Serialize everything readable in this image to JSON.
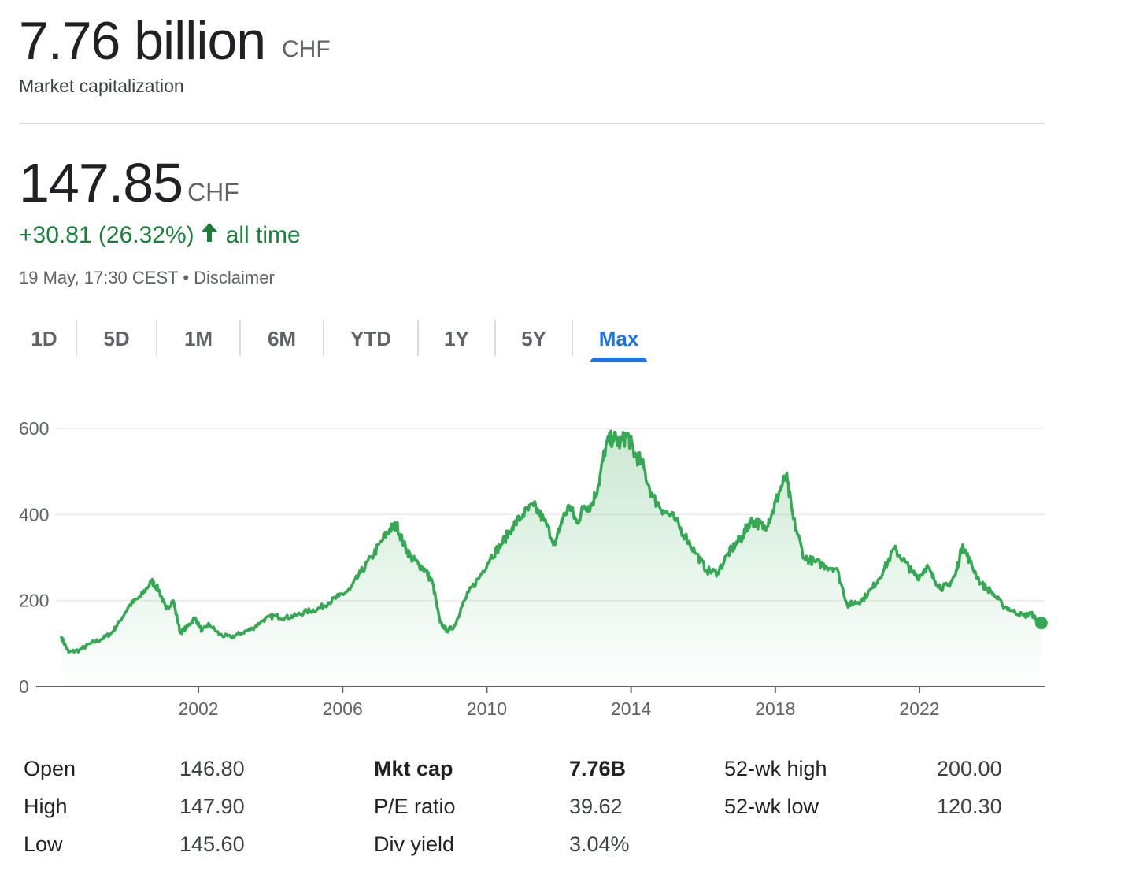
{
  "market_cap": {
    "value": "7.76 billion",
    "currency": "CHF",
    "label": "Market capitalization"
  },
  "price": {
    "value": "147.85",
    "currency": "CHF"
  },
  "change": {
    "text": "+30.81 (26.32%)",
    "period": "all time",
    "direction": "up",
    "color": "#188038"
  },
  "timestamp": {
    "time": "19 May, 17:30 CEST",
    "separator": "•",
    "disclaimer": "Disclaimer"
  },
  "tabs": [
    {
      "label": "1D",
      "selected": false
    },
    {
      "label": "5D",
      "selected": false
    },
    {
      "label": "1M",
      "selected": false
    },
    {
      "label": "6M",
      "selected": false
    },
    {
      "label": "YTD",
      "selected": false
    },
    {
      "label": "1Y",
      "selected": false
    },
    {
      "label": "5Y",
      "selected": false
    },
    {
      "label": "Max",
      "selected": true
    }
  ],
  "accent_color": "#1a73e8",
  "chart_data": {
    "type": "area",
    "title": "",
    "xlabel": "",
    "ylabel": "",
    "x_ticks": [
      "2002",
      "2006",
      "2010",
      "2014",
      "2018",
      "2022"
    ],
    "y_ticks": [
      "0",
      "200",
      "400",
      "600"
    ],
    "xlim": [
      1998.2,
      2025.45
    ],
    "ylim": [
      0,
      600
    ],
    "grid": true,
    "line_color": "#34a853",
    "series": [
      {
        "name": "",
        "x": [
          1998.2,
          1998.4,
          1998.7,
          1999.0,
          1999.3,
          1999.6,
          1999.8,
          2000.1,
          2000.4,
          2000.7,
          2000.9,
          2001.1,
          2001.3,
          2001.5,
          2001.7,
          2001.9,
          2002.1,
          2002.3,
          2002.6,
          2002.9,
          2003.2,
          2003.5,
          2003.8,
          2004.1,
          2004.4,
          2004.7,
          2005.0,
          2005.3,
          2005.6,
          2005.9,
          2006.2,
          2006.5,
          2006.8,
          2007.1,
          2007.3,
          2007.5,
          2007.7,
          2007.9,
          2008.1,
          2008.3,
          2008.5,
          2008.7,
          2008.9,
          2009.1,
          2009.3,
          2009.5,
          2009.8,
          2010.1,
          2010.4,
          2010.7,
          2011.0,
          2011.3,
          2011.6,
          2011.9,
          2012.1,
          2012.3,
          2012.5,
          2012.7,
          2012.9,
          2013.1,
          2013.3,
          2013.5,
          2013.7,
          2013.9,
          2014.1,
          2014.3,
          2014.6,
          2014.9,
          2015.2,
          2015.5,
          2015.8,
          2016.1,
          2016.4,
          2016.7,
          2016.9,
          2017.1,
          2017.3,
          2017.5,
          2017.7,
          2017.9,
          2018.1,
          2018.3,
          2018.5,
          2018.8,
          2019.1,
          2019.4,
          2019.7,
          2020.0,
          2020.2,
          2020.4,
          2020.7,
          2021.0,
          2021.3,
          2021.6,
          2021.8,
          2022.0,
          2022.2,
          2022.4,
          2022.6,
          2022.8,
          2023.0,
          2023.2,
          2023.4,
          2023.7,
          2024.0,
          2024.3,
          2024.6,
          2024.9,
          2025.1,
          2025.3,
          2025.38
        ],
        "values": [
          115,
          80,
          85,
          100,
          110,
          125,
          150,
          190,
          210,
          245,
          225,
          180,
          200,
          125,
          140,
          160,
          130,
          145,
          120,
          115,
          125,
          135,
          155,
          165,
          160,
          165,
          175,
          180,
          195,
          210,
          225,
          265,
          300,
          340,
          365,
          375,
          330,
          300,
          285,
          270,
          240,
          150,
          130,
          140,
          185,
          220,
          255,
          300,
          330,
          370,
          400,
          420,
          385,
          330,
          390,
          420,
          380,
          420,
          420,
          470,
          560,
          580,
          565,
          585,
          540,
          520,
          440,
          410,
          390,
          350,
          310,
          270,
          265,
          310,
          330,
          350,
          385,
          380,
          370,
          400,
          450,
          490,
          390,
          300,
          290,
          280,
          275,
          190,
          195,
          200,
          230,
          270,
          320,
          290,
          265,
          255,
          280,
          250,
          230,
          235,
          260,
          330,
          290,
          240,
          220,
          190,
          175,
          165,
          170,
          150,
          148
        ]
      }
    ]
  },
  "stats": [
    {
      "label": "Open",
      "value": "146.80",
      "bold": false
    },
    {
      "label": "High",
      "value": "147.90",
      "bold": false
    },
    {
      "label": "Low",
      "value": "145.60",
      "bold": false
    },
    {
      "label": "Mkt cap",
      "value": "7.76B",
      "bold": true
    },
    {
      "label": "P/E ratio",
      "value": "39.62",
      "bold": false
    },
    {
      "label": "Div yield",
      "value": "3.04%",
      "bold": false
    },
    {
      "label": "52-wk high",
      "value": "200.00",
      "bold": false
    },
    {
      "label": "52-wk low",
      "value": "120.30",
      "bold": false
    }
  ]
}
